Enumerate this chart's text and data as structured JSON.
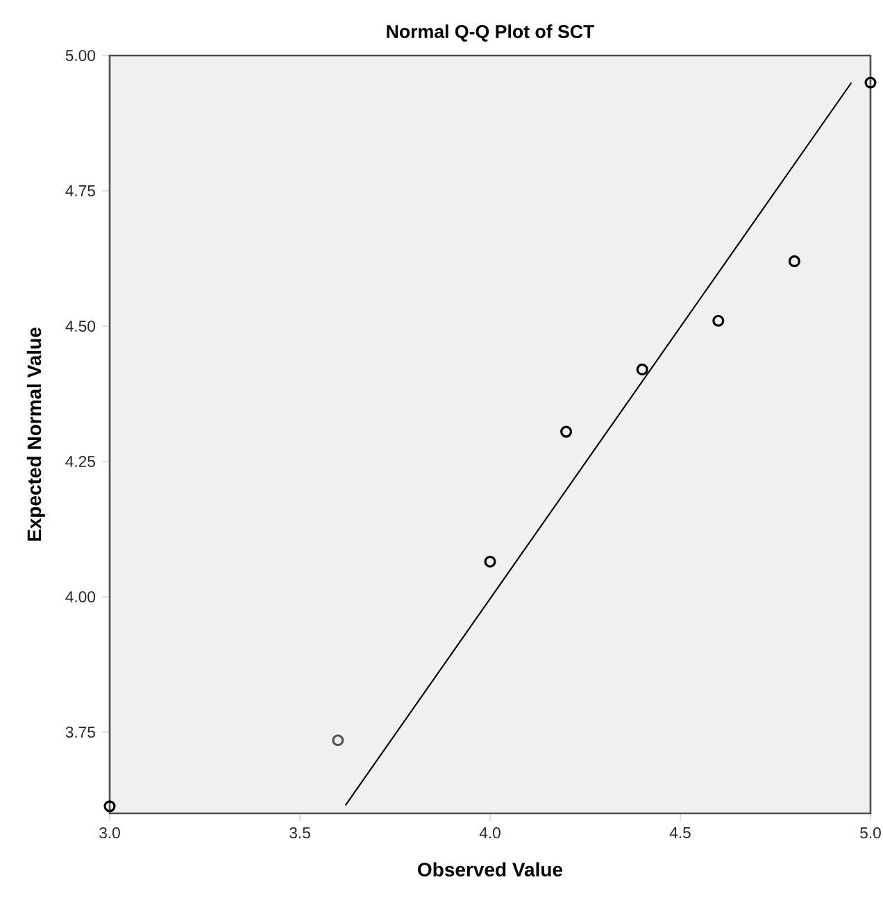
{
  "chart_data": {
    "type": "scatter",
    "title": "Normal Q-Q Plot of SCT",
    "xlabel": "Observed Value",
    "ylabel": "Expected Normal Value",
    "xlim": [
      3.0,
      5.0
    ],
    "ylim": [
      3.6,
      5.0
    ],
    "xticks": [
      {
        "value": 3,
        "label": "3.0"
      },
      {
        "value": 3.5,
        "label": "3.5"
      },
      {
        "value": 4,
        "label": "4.0"
      },
      {
        "value": 4.5,
        "label": "4.5"
      },
      {
        "value": 5,
        "label": "5.0"
      }
    ],
    "yticks": [
      {
        "value": 3.75,
        "label": "3.75"
      },
      {
        "value": 4,
        "label": "4.00"
      },
      {
        "value": 4.25,
        "label": "4.25"
      },
      {
        "value": 4.5,
        "label": "4.50"
      },
      {
        "value": 4.75,
        "label": "4.75"
      },
      {
        "value": 5,
        "label": "5.00"
      }
    ],
    "grid": false,
    "series": [
      {
        "marker": "circle",
        "x": [
          3.0,
          3.6,
          4.0,
          4.2,
          4.4,
          4.6,
          4.8,
          5.0
        ],
        "values": [
          3.613,
          3.735,
          4.065,
          4.305,
          4.42,
          4.51,
          4.62,
          4.95
        ],
        "colors": [
          "#000000",
          "#555555",
          "#000000",
          "#000000",
          "#000000",
          "#000000",
          "#000000",
          "#000000"
        ]
      },
      {
        "type": "line",
        "x": [
          3.62,
          4.95
        ],
        "values": [
          3.615,
          4.95
        ],
        "color": "#000000",
        "line_style": "solid",
        "marker": "none"
      }
    ]
  }
}
